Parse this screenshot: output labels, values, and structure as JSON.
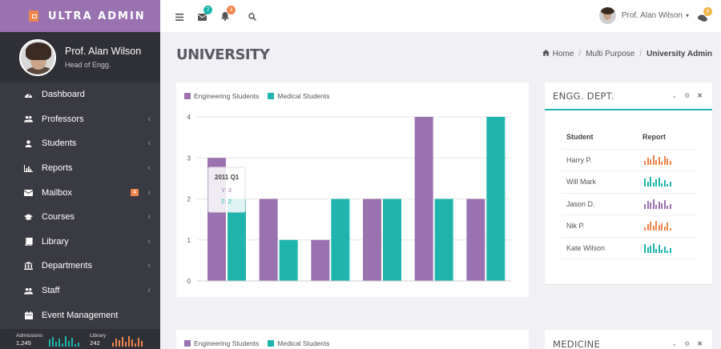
{
  "brand": {
    "title": "ULTRA ADMIN",
    "accent": "#9b72b0"
  },
  "profile": {
    "name": "Prof. Alan Wilson",
    "role": "Head of Engg."
  },
  "sidebar": {
    "items": [
      {
        "label": "Dashboard",
        "icon": "dashboard-icon",
        "arrow": false
      },
      {
        "label": "Professors",
        "icon": "users-icon",
        "arrow": true
      },
      {
        "label": "Students",
        "icon": "user-icon",
        "arrow": true
      },
      {
        "label": "Reports",
        "icon": "bar-chart-icon",
        "arrow": true
      },
      {
        "label": "Mailbox",
        "icon": "envelope-icon",
        "arrow": true,
        "badge": "4"
      },
      {
        "label": "Courses",
        "icon": "graduation-cap-icon",
        "arrow": true
      },
      {
        "label": "Library",
        "icon": "book-icon",
        "arrow": true
      },
      {
        "label": "Departments",
        "icon": "institution-icon",
        "arrow": true
      },
      {
        "label": "Staff",
        "icon": "users-icon",
        "arrow": true
      },
      {
        "label": "Event Management",
        "icon": "calendar-icon",
        "arrow": false
      }
    ],
    "footer": {
      "admissions_label": "Admissions",
      "admissions_value": "1,245",
      "library_label": "Library",
      "library_value": "242"
    }
  },
  "topbar": {
    "mail_count": "7",
    "notif_count": "3",
    "user_name": "Prof. Alan Wilson",
    "chat_count": "9"
  },
  "page": {
    "title": "UNIVERSITY"
  },
  "breadcrumb": {
    "home": "Home",
    "section": "Multi Purpose",
    "current": "University Admin"
  },
  "chart_data": {
    "type": "bar",
    "series": [
      {
        "name": "Engineering Students",
        "color": "#9b72b0",
        "values": [
          3,
          2,
          1,
          2,
          4,
          2
        ]
      },
      {
        "name": "Medical Students",
        "color": "#1fb5ad",
        "values": [
          2,
          1,
          2,
          2,
          2,
          4
        ]
      }
    ],
    "yticks": [
      "0",
      "1",
      "2",
      "3",
      "4"
    ],
    "ylim": [
      0,
      4
    ],
    "grid": true,
    "legend": "top-left",
    "tooltip": {
      "title": "2011 Q1",
      "y": "Y: 3",
      "z": "Z: 2"
    }
  },
  "engg_card": {
    "title": "ENGG. DEPT.",
    "col_student": "Student",
    "col_report": "Report",
    "rows": [
      {
        "name": "Harry P.",
        "color": "#f0854c"
      },
      {
        "name": "Will Mark",
        "color": "#1fb5ad"
      },
      {
        "name": "Jason D.",
        "color": "#9b72b0"
      },
      {
        "name": "Nik P.",
        "color": "#f0854c"
      },
      {
        "name": "Kate Wilson",
        "color": "#1fb5ad"
      }
    ]
  },
  "medicine_card": {
    "title": "MEDICINE"
  },
  "chart2_legend": [
    "Engineering Students",
    "Medical Students"
  ]
}
